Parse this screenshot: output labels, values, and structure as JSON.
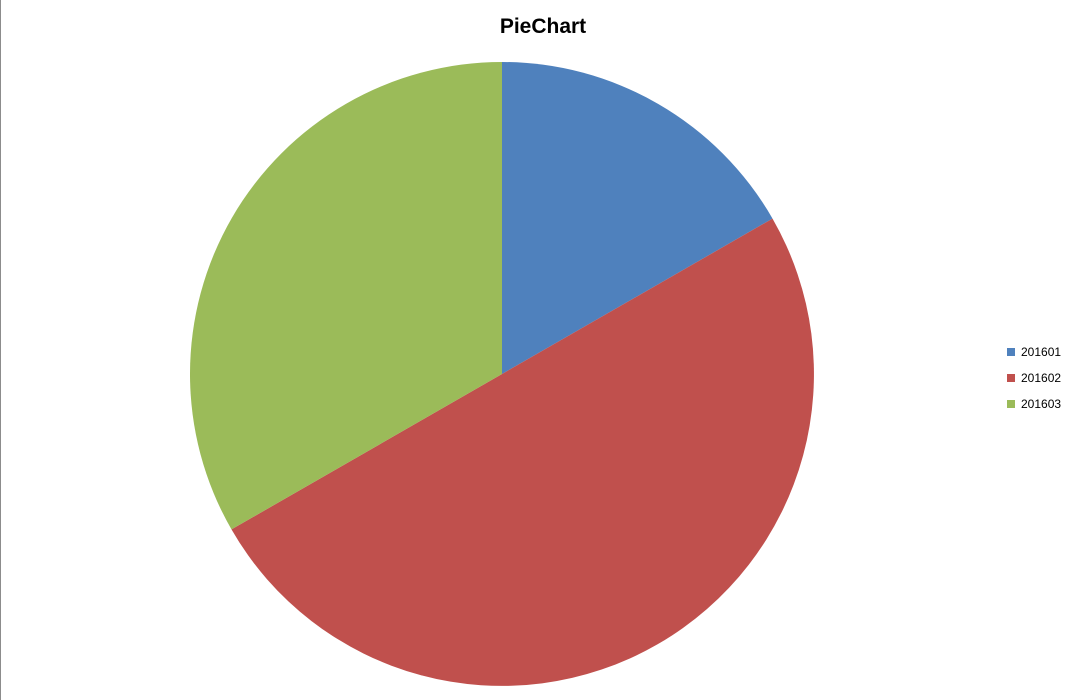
{
  "chart_data": {
    "type": "pie",
    "title": "PieChart",
    "categories": [
      "201601",
      "201602",
      "201603"
    ],
    "values": [
      16.7,
      50.0,
      33.3
    ],
    "colors": [
      "#4f81bd",
      "#c0504d",
      "#9bbb59"
    ],
    "start_angle_deg": 0,
    "direction": "clockwise",
    "legend_position": "right"
  }
}
